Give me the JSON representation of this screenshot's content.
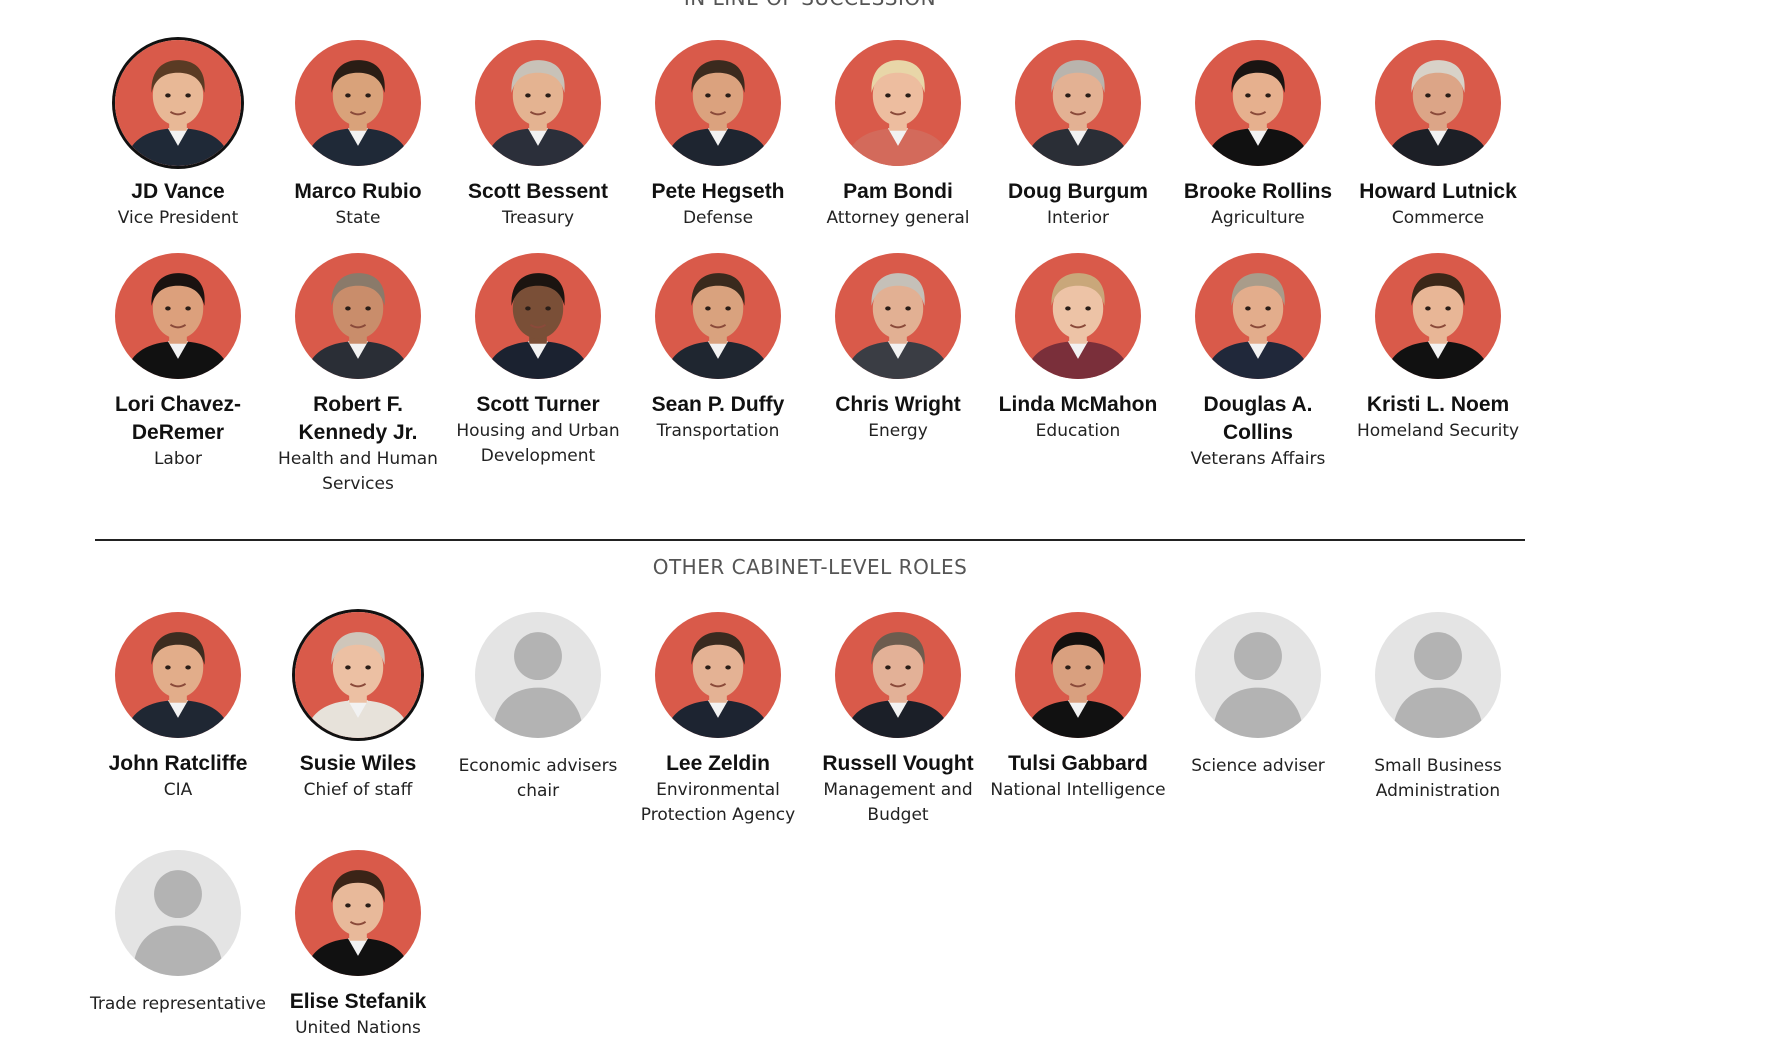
{
  "sections": {
    "succession": {
      "title": "IN LINE OF SUCCESSION"
    },
    "other": {
      "title": "OTHER CABINET-LEVEL ROLES"
    }
  },
  "colors": {
    "avatar_bg": "#d95a4a",
    "placeholder_bg": "#e4e4e4",
    "placeholder_fg": "#b3b3b3",
    "ring": "#111111"
  },
  "succession": [
    {
      "name": "JD Vance",
      "role": "Vice President",
      "photo": "portrait",
      "skin": "#e8b896",
      "hair": "#5a3b24",
      "suit": "#1f2937",
      "ring": true
    },
    {
      "name": "Marco Rubio",
      "role": "State",
      "photo": "portrait",
      "skin": "#d9a27a",
      "hair": "#2a1d15",
      "suit": "#1f2937",
      "ring": false
    },
    {
      "name": "Scott Bessent",
      "role": "Treasury",
      "photo": "portrait",
      "skin": "#e4b391",
      "hair": "#c8c2b8",
      "suit": "#2b2f3a",
      "ring": false
    },
    {
      "name": "Pete Hegseth",
      "role": "Defense",
      "photo": "portrait",
      "skin": "#dba27e",
      "hair": "#3b2a1e",
      "suit": "#1e2530",
      "ring": false
    },
    {
      "name": "Pam Bondi",
      "role": "Attorney general",
      "photo": "portrait",
      "skin": "#edbd9f",
      "hair": "#e8d6a8",
      "suit": "#d36a5b",
      "ring": false
    },
    {
      "name": "Doug Burgum",
      "role": "Interior",
      "photo": "portrait",
      "skin": "#e3b193",
      "hair": "#b9b4ad",
      "suit": "#2a2e36",
      "ring": false
    },
    {
      "name": "Brooke Rollins",
      "role": "Agriculture",
      "photo": "portrait",
      "skin": "#e6b08e",
      "hair": "#1a1412",
      "suit": "#111111",
      "ring": false
    },
    {
      "name": "Howard Lutnick",
      "role": "Commerce",
      "photo": "portrait",
      "skin": "#dca587",
      "hair": "#d8d2c8",
      "suit": "#1c1f26",
      "ring": false
    },
    {
      "name": "Lori Chavez-DeRemer",
      "role": "Labor",
      "photo": "portrait",
      "skin": "#dca07c",
      "hair": "#1a1210",
      "suit": "#111111",
      "ring": false
    },
    {
      "name": "Robert F. Kennedy Jr.",
      "role": "Health and Human Services",
      "photo": "portrait",
      "skin": "#c98d6b",
      "hair": "#8a7a6a",
      "suit": "#2a2e36",
      "ring": false
    },
    {
      "name": "Scott Turner",
      "role": "Housing and Urban Development",
      "photo": "portrait",
      "skin": "#7a4f37",
      "hair": "#1b1410",
      "suit": "#1b2230",
      "ring": false
    },
    {
      "name": "Sean P. Duffy",
      "role": "Transportation",
      "photo": "portrait",
      "skin": "#d9a27e",
      "hair": "#3a2a1d",
      "suit": "#1f2630",
      "ring": false
    },
    {
      "name": "Chris Wright",
      "role": "Energy",
      "photo": "portrait",
      "skin": "#e2b093",
      "hair": "#c5c0b8",
      "suit": "#3a3d44",
      "ring": false
    },
    {
      "name": "Linda McMahon",
      "role": "Education",
      "photo": "portrait",
      "skin": "#edc3a6",
      "hair": "#c9a77a",
      "suit": "#7a2f3a",
      "ring": false
    },
    {
      "name": "Douglas A. Collins",
      "role": "Veterans Affairs",
      "photo": "portrait",
      "skin": "#e3ad8c",
      "hair": "#a99c8a",
      "suit": "#20283a",
      "ring": false
    },
    {
      "name": "Kristi L. Noem",
      "role": "Homeland Security",
      "photo": "portrait",
      "skin": "#e8b696",
      "hair": "#3b2718",
      "suit": "#111111",
      "ring": false
    }
  ],
  "other": [
    {
      "name": "John Ratcliffe",
      "role": "CIA",
      "photo": "portrait",
      "skin": "#e2ad8a",
      "hair": "#3c2c20",
      "suit": "#1f2733",
      "ring": false
    },
    {
      "name": "Susie Wiles",
      "role": "Chief of staff",
      "photo": "portrait",
      "skin": "#ecc0a3",
      "hair": "#cfc6ba",
      "suit": "#e7e2da",
      "ring": true
    },
    {
      "name": "",
      "role": "Economic advisers chair",
      "photo": "placeholder",
      "ring": false
    },
    {
      "name": "Lee Zeldin",
      "role": "Environmental Protection Agency",
      "photo": "portrait",
      "skin": "#e4b294",
      "hair": "#3a2a1f",
      "suit": "#1d2431",
      "ring": false
    },
    {
      "name": "Russell Vought",
      "role": "Management and Budget",
      "photo": "portrait",
      "skin": "#e3b197",
      "hair": "#6d5c4e",
      "suit": "#1b1f28",
      "ring": false
    },
    {
      "name": "Tulsi Gabbard",
      "role": "National Intelligence",
      "photo": "portrait",
      "skin": "#d9a07f",
      "hair": "#14100e",
      "suit": "#111111",
      "ring": false
    },
    {
      "name": "",
      "role": "Science adviser",
      "photo": "placeholder",
      "ring": false
    },
    {
      "name": "",
      "role": "Small Business Administration",
      "photo": "placeholder",
      "ring": false
    },
    {
      "name": "",
      "role": "Trade representative",
      "photo": "placeholder",
      "ring": false
    },
    {
      "name": "Elise Stefanik",
      "role": "United Nations",
      "photo": "portrait",
      "skin": "#e8b99a",
      "hair": "#3b2417",
      "suit": "#111111",
      "ring": false
    }
  ]
}
